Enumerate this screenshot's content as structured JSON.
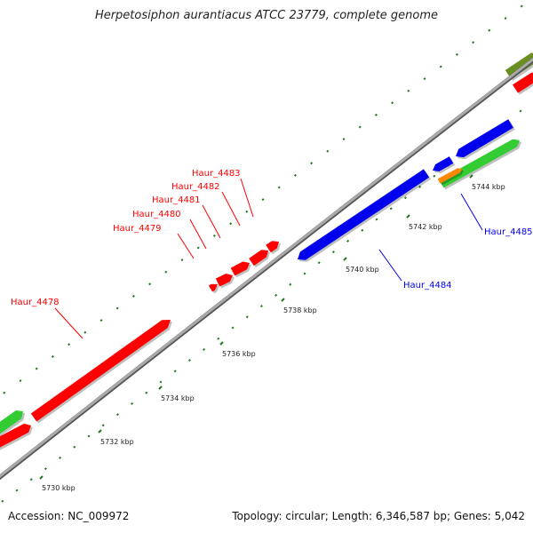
{
  "title": "Herpetosiphon aurantiacus ATCC 23779, complete genome",
  "footer": {
    "accession": "Accession: NC_009972",
    "summary": "Topology: circular; Length: 6,346,587 bp; Genes: 5,042"
  },
  "colors": {
    "forward_gene": "#ff0000",
    "reverse_gene": "#0000ee",
    "green_feature": "#33cc33",
    "olive_feature": "#6b8e23",
    "orange_feature": "#ff8800",
    "backbone": "#999999",
    "tick": "#227722"
  },
  "tick_labels": [
    {
      "text": "5730 kbp",
      "kbp": 5730
    },
    {
      "text": "5732 kbp",
      "kbp": 5732
    },
    {
      "text": "5734 kbp",
      "kbp": 5734
    },
    {
      "text": "5736 kbp",
      "kbp": 5736
    },
    {
      "text": "5738 kbp",
      "kbp": 5738
    },
    {
      "text": "5740 kbp",
      "kbp": 5740
    },
    {
      "text": "5742 kbp",
      "kbp": 5742
    },
    {
      "text": "5744 kbp",
      "kbp": 5744
    }
  ],
  "gene_labels": [
    {
      "text": "Haur_4478",
      "strand": "forward"
    },
    {
      "text": "Haur_4479",
      "strand": "forward"
    },
    {
      "text": "Haur_4480",
      "strand": "forward"
    },
    {
      "text": "Haur_4481",
      "strand": "forward"
    },
    {
      "text": "Haur_4482",
      "strand": "forward"
    },
    {
      "text": "Haur_4483",
      "strand": "forward"
    },
    {
      "text": "Haur_4484",
      "strand": "reverse"
    },
    {
      "text": "Haur_4485",
      "strand": "reverse"
    }
  ]
}
